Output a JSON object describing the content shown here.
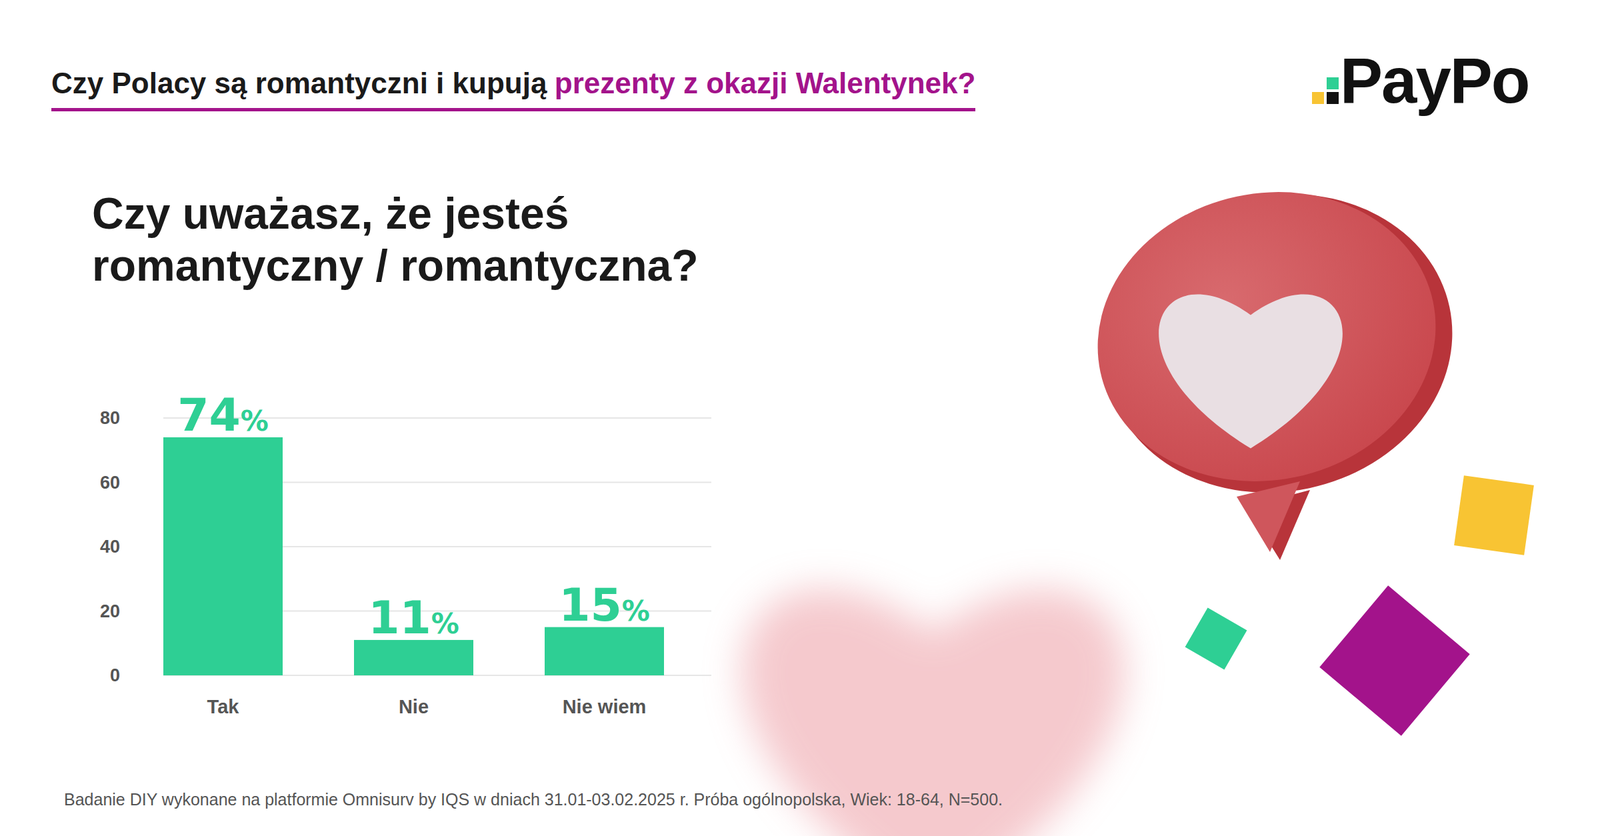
{
  "header": {
    "title": "Czy Polacy są romantyczni i kupują",
    "title_highlight": "prezenty z okazji Walentynek?"
  },
  "logo": "PayPo",
  "chart_data": {
    "type": "bar",
    "title": "Czy uważasz, że jesteś romantyczny / romantyczna?",
    "categories": [
      "Tak",
      "Nie",
      "Nie wiem"
    ],
    "values": [
      74,
      11,
      15
    ],
    "value_labels": [
      "74%",
      "11%",
      "15%"
    ],
    "data_labels": true,
    "color": "#2ecf94",
    "ylim": [
      0,
      80
    ],
    "yticks": [
      0,
      20,
      40,
      60,
      80
    ],
    "grid": true
  },
  "source": "Badanie DIY wykonane na platformie Omnisurv by IQS w dniach 31.01-03.02.2025 r. Próba ogólnopolska, Wiek: 18-64, N=500."
}
